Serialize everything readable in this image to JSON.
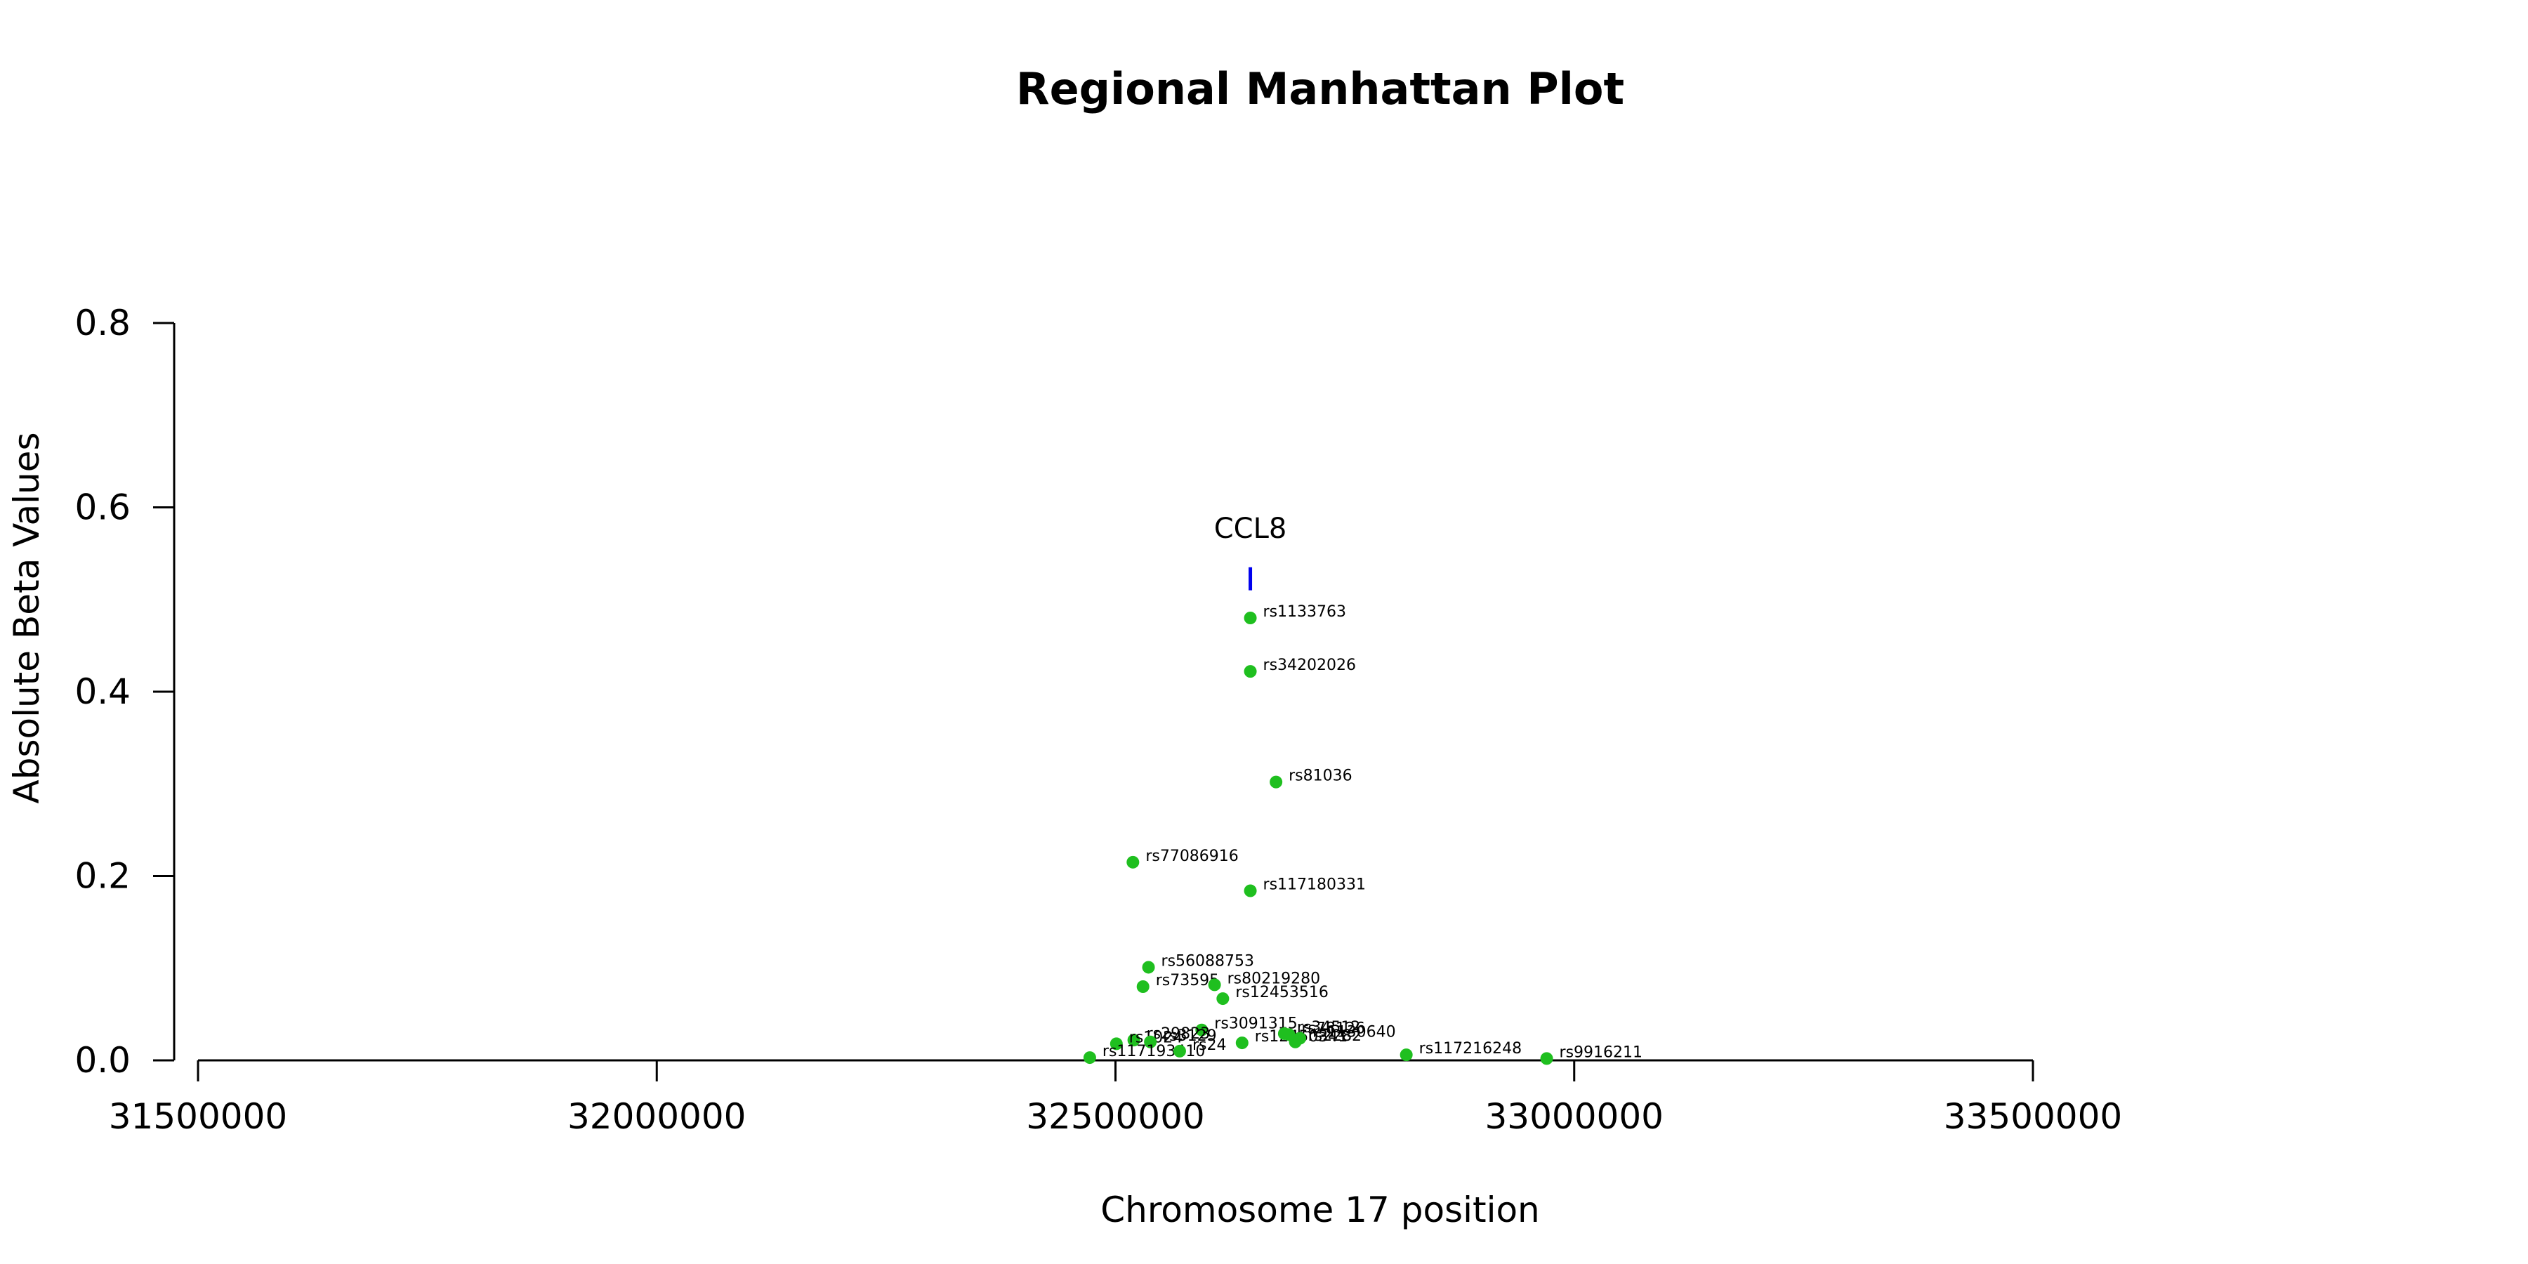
{
  "chart_data": {
    "type": "scatter",
    "title": "Regional Manhattan Plot",
    "xlabel": "Chromosome 17 position",
    "ylabel": "Absolute Beta Values",
    "xlim": [
      31500000,
      33500000
    ],
    "ylim": [
      0,
      0.8
    ],
    "xticks": [
      31500000,
      32000000,
      32500000,
      33000000,
      33500000
    ],
    "xtick_labels": [
      "31500000",
      "32000000",
      "32500000",
      "33000000",
      "33500000"
    ],
    "yticks": [
      0.0,
      0.2,
      0.4,
      0.6,
      0.8
    ],
    "ytick_labels": [
      "0.0",
      "0.2",
      "0.4",
      "0.6",
      "0.8"
    ],
    "grid": false,
    "point_color": "#1FBF1F",
    "gene_color": "#0000EE",
    "gene": {
      "name": "CCL8",
      "x": 32647000,
      "y_low": 0.51,
      "y_high": 0.535
    },
    "points": [
      {
        "snp": "rs1133763",
        "x": 32647000,
        "y": 0.48
      },
      {
        "snp": "rs34202026",
        "x": 32647000,
        "y": 0.422
      },
      {
        "snp": "rs81036",
        "x": 32675000,
        "y": 0.302
      },
      {
        "snp": "rs77086916",
        "x": 32519000,
        "y": 0.215
      },
      {
        "snp": "rs117180331",
        "x": 32647000,
        "y": 0.184
      },
      {
        "snp": "rs56088753",
        "x": 32536000,
        "y": 0.101
      },
      {
        "snp": "rs73595",
        "x": 32530000,
        "y": 0.08
      },
      {
        "snp": "rs80219280",
        "x": 32608000,
        "y": 0.082
      },
      {
        "snp": "rs12453516",
        "x": 32617000,
        "y": 0.067
      },
      {
        "snp": "rs3091315",
        "x": 32594000,
        "y": 0.033
      },
      {
        "snp": "rs12450341",
        "x": 32638000,
        "y": 0.019
      },
      {
        "snp": "rs2282",
        "x": 32696000,
        "y": 0.02
      },
      {
        "snp": "rs1130640",
        "x": 32701000,
        "y": 0.024
      },
      {
        "snp": "rs78126",
        "x": 32689000,
        "y": 0.028
      },
      {
        "snp": "rs34512",
        "x": 32684000,
        "y": 0.029
      },
      {
        "snp": "rs29823",
        "x": 32520000,
        "y": 0.022
      },
      {
        "snp": "rs1024",
        "x": 32501000,
        "y": 0.018
      },
      {
        "snp": "rs3129",
        "x": 32538000,
        "y": 0.02
      },
      {
        "snp": "rs117193410",
        "x": 32472000,
        "y": 0.003
      },
      {
        "snp": "rs24",
        "x": 32570000,
        "y": 0.01
      },
      {
        "snp": "rs117216248",
        "x": 32817000,
        "y": 0.006
      },
      {
        "snp": "rs9916211",
        "x": 32970000,
        "y": 0.002
      }
    ]
  }
}
